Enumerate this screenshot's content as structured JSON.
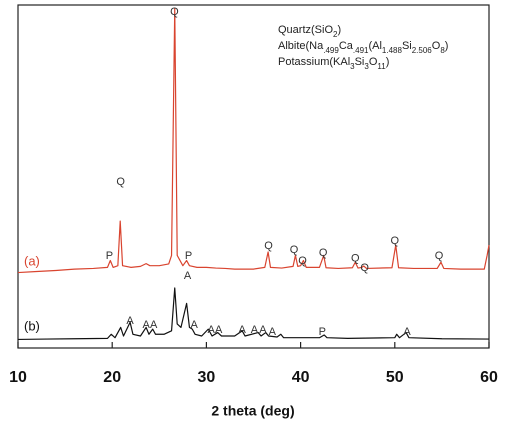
{
  "chart_data": {
    "type": "line",
    "xlabel": "2 theta (deg)",
    "xlim": [
      10,
      60
    ],
    "xticks": [
      10,
      20,
      30,
      40,
      50,
      60
    ],
    "ylim": [
      0,
      100
    ],
    "series": [
      {
        "name": "(a)",
        "color": "#d9442f",
        "x": [
          10,
          12,
          14,
          16,
          18,
          19.5,
          19.8,
          20.1,
          20.6,
          20.85,
          21.1,
          22,
          23,
          23.6,
          24,
          25,
          26,
          26.3,
          26.64,
          26.9,
          27.5,
          27.9,
          28.2,
          29,
          30,
          31,
          32,
          33,
          34,
          35,
          36.2,
          36.55,
          36.8,
          38,
          39.2,
          39.45,
          39.7,
          40.0,
          40.3,
          40.6,
          42,
          42.45,
          42.7,
          44,
          45.5,
          45.8,
          46.1,
          46.5,
          46.7,
          47,
          49.7,
          50.1,
          50.4,
          52,
          54.5,
          54.9,
          55.2,
          57,
          59.5,
          59.8,
          60
        ],
        "values": [
          22,
          22.3,
          22.6,
          23,
          23.2,
          23.5,
          25.5,
          23.5,
          24,
          37,
          24,
          23.5,
          23.8,
          24.6,
          24,
          24,
          24.5,
          27,
          99,
          27,
          24,
          25.5,
          24,
          23.5,
          23.5,
          23.3,
          23.2,
          23,
          23,
          23,
          23.5,
          28,
          23.5,
          23.3,
          23.8,
          27,
          23.8,
          24,
          25.5,
          23.5,
          23.5,
          27,
          23.4,
          23.2,
          23.4,
          25,
          23.3,
          23.5,
          23.9,
          23.2,
          23.4,
          30,
          23.4,
          23.2,
          23.2,
          25,
          23.2,
          23,
          23,
          27,
          30
        ]
      },
      {
        "name": "(b)",
        "color": "#111111",
        "x": [
          10,
          13,
          16,
          19.5,
          19.9,
          20.3,
          20.9,
          21.2,
          21.9,
          22.2,
          23,
          23.6,
          23.9,
          24.3,
          24.6,
          25.5,
          26.3,
          26.64,
          26.9,
          27.3,
          27.9,
          28.2,
          28.5,
          28.8,
          29.5,
          30.2,
          30.6,
          31.2,
          31.6,
          33,
          33.8,
          34.1,
          35.5,
          35.8,
          36.3,
          36.6,
          37.5,
          37.9,
          38.2,
          40,
          42,
          42.5,
          42.8,
          45,
          50,
          50.2,
          50.5,
          51.2,
          51.5,
          55,
          60
        ],
        "values": [
          2.5,
          2.6,
          2.7,
          2.8,
          4,
          3,
          6,
          3.5,
          7.5,
          4,
          3.5,
          6,
          4,
          5.5,
          4,
          4,
          5,
          17.5,
          7,
          6,
          13,
          6,
          5.5,
          4,
          3.5,
          5.5,
          3.5,
          4.5,
          3.5,
          3.5,
          5,
          3.5,
          4.5,
          3.5,
          4.5,
          3.5,
          3.2,
          4,
          3,
          3,
          3,
          3.8,
          3,
          2.8,
          3,
          4,
          3,
          4.5,
          3,
          2.7,
          2.6
        ]
      }
    ],
    "annotations": [
      {
        "text": "Q",
        "x": 26.6,
        "y": 98
      },
      {
        "text": "Q",
        "x": 20.9,
        "y": 48.4
      },
      {
        "text": "P",
        "x": 19.7,
        "y": 26.8
      },
      {
        "text": "P",
        "x": 28.1,
        "y": 26.8
      },
      {
        "text": "Q",
        "x": 36.6,
        "y": 29.7
      },
      {
        "text": "Q",
        "x": 39.3,
        "y": 28.6
      },
      {
        "text": "Q",
        "x": 40.2,
        "y": 25.4
      },
      {
        "text": "Q",
        "x": 42.4,
        "y": 27.7
      },
      {
        "text": "Q",
        "x": 45.8,
        "y": 26
      },
      {
        "text": "Q",
        "x": 46.8,
        "y": 23.3
      },
      {
        "text": "Q",
        "x": 50.0,
        "y": 31.2
      },
      {
        "text": "Q",
        "x": 54.7,
        "y": 26.8
      },
      {
        "text": "A",
        "x": 21.9,
        "y": 7.9
      },
      {
        "text": "A",
        "x": 23.6,
        "y": 6.7
      },
      {
        "text": "A",
        "x": 24.4,
        "y": 6.7
      },
      {
        "text": "A",
        "x": 28.0,
        "y": 21
      },
      {
        "text": "A",
        "x": 28.7,
        "y": 6.7
      },
      {
        "text": "A",
        "x": 30.5,
        "y": 5.2
      },
      {
        "text": "A",
        "x": 31.3,
        "y": 5.2
      },
      {
        "text": "A",
        "x": 33.8,
        "y": 5.2
      },
      {
        "text": "A",
        "x": 35.1,
        "y": 5.2
      },
      {
        "text": "A",
        "x": 36.0,
        "y": 5.2
      },
      {
        "text": "A",
        "x": 37.0,
        "y": 4.7
      },
      {
        "text": "P",
        "x": 42.3,
        "y": 4.7
      },
      {
        "text": "A",
        "x": 51.3,
        "y": 4.7
      }
    ],
    "legend": [
      [
        {
          "text": "Quartz(SiO"
        },
        {
          "text": "2",
          "sub": true
        },
        {
          "text": ")"
        }
      ],
      [
        {
          "text": "Albite(Na"
        },
        {
          "text": ".499",
          "sub": true
        },
        {
          "text": "Ca"
        },
        {
          "text": ".491",
          "sub": true
        },
        {
          "text": "(Al"
        },
        {
          "text": "1.488",
          "sub": true
        },
        {
          "text": "Si"
        },
        {
          "text": "2.506",
          "sub": true
        },
        {
          "text": "O"
        },
        {
          "text": "8",
          "sub": true
        },
        {
          "text": ")"
        }
      ],
      [
        {
          "text": "Potassium(KAl"
        },
        {
          "text": "3",
          "sub": true
        },
        {
          "text": "Si"
        },
        {
          "text": "3",
          "sub": true
        },
        {
          "text": "O"
        },
        {
          "text": "11",
          "sub": true
        },
        {
          "text": ")"
        }
      ]
    ]
  }
}
